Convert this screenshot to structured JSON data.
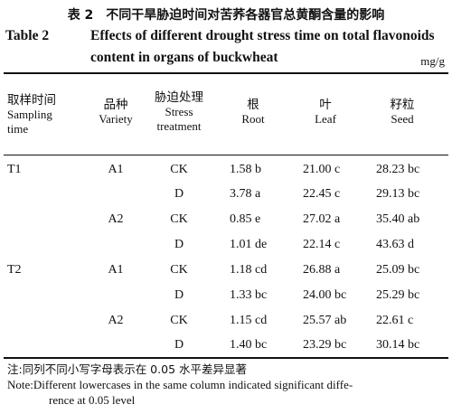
{
  "title_cn": "表 2　不同干旱胁迫时间对苦荞各器官总黄酮含量的影响",
  "title_en_label": "Table 2",
  "title_en_line1": "Effects of different drought stress time on total flavonoids",
  "title_en_line2": "content in organs of buckwheat",
  "unit": "mg/g",
  "headers": {
    "time_cn": "取样时间",
    "time_en_1": "Sampling",
    "time_en_2": "time",
    "variety_cn": "品种",
    "variety_en": "Variety",
    "stress_cn": "胁迫处理",
    "stress_en_1": "Stress",
    "stress_en_2": "treatment",
    "root_cn": "根",
    "root_en": "Root",
    "leaf_cn": "叶",
    "leaf_en": "Leaf",
    "seed_cn": "籽粒",
    "seed_en": "Seed"
  },
  "rows": [
    {
      "time": "T1",
      "variety": "A1",
      "stress": "CK",
      "root": "1.58 b",
      "leaf": "21.00 c",
      "seed": "28.23 bc"
    },
    {
      "time": "",
      "variety": "",
      "stress": "D",
      "root": "3.78 a",
      "leaf": "22.45 c",
      "seed": "29.13 bc"
    },
    {
      "time": "",
      "variety": "A2",
      "stress": "CK",
      "root": "0.85 e",
      "leaf": "27.02 a",
      "seed": "35.40 ab"
    },
    {
      "time": "",
      "variety": "",
      "stress": "D",
      "root": "1.01 de",
      "leaf": "22.14 c",
      "seed": "43.63 d"
    },
    {
      "time": "T2",
      "variety": "A1",
      "stress": "CK",
      "root": "1.18 cd",
      "leaf": "26.88 a",
      "seed": "25.09 bc"
    },
    {
      "time": "",
      "variety": "",
      "stress": "D",
      "root": "1.33 bc",
      "leaf": "24.00 bc",
      "seed": "25.29 bc"
    },
    {
      "time": "",
      "variety": "A2",
      "stress": "CK",
      "root": "1.15 cd",
      "leaf": "25.57 ab",
      "seed": "22.61 c"
    },
    {
      "time": "",
      "variety": "",
      "stress": "D",
      "root": "1.40 bc",
      "leaf": "23.29 bc",
      "seed": "30.14 bc"
    }
  ],
  "note_cn": "注:同列不同小写字母表示在 0.05 水平差异显著",
  "note_en_1": "Note:Different lowercases in the same column indicated significant diffe-",
  "note_en_2": "rence at 0.05 level"
}
